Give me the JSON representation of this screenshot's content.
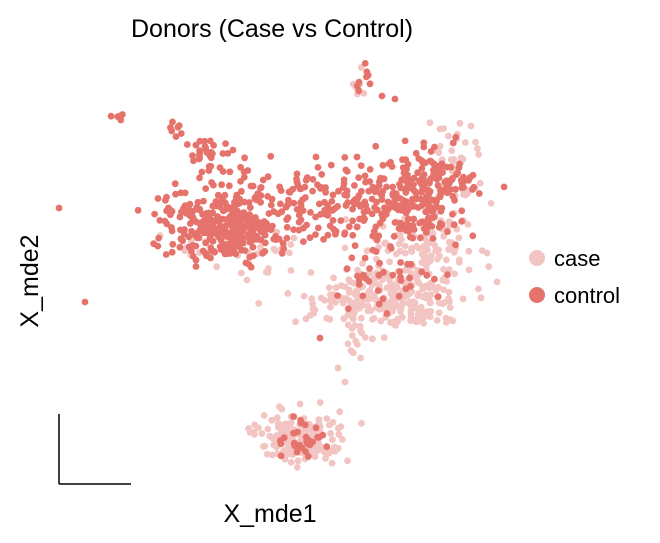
{
  "chart_data": {
    "type": "scatter",
    "title": "Donors (Case vs Control)",
    "xlabel": "X_mde1",
    "ylabel": "X_mde2",
    "legend_placement": "right",
    "grid": false,
    "series": [
      {
        "name": "case",
        "color": "#f2c4c2"
      },
      {
        "name": "control",
        "color": "#e5736c"
      }
    ]
  }
}
